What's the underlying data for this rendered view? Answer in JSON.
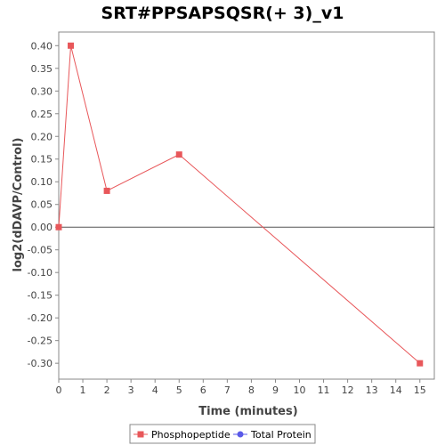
{
  "chart_data": {
    "type": "line",
    "title": "SRT#PPSAPSQSR(+ 3)_v1",
    "xlabel": "Time (minutes)",
    "ylabel": "log2(dDAVP/Control)",
    "xlim": [
      0,
      15.6
    ],
    "ylim": [
      -0.335,
      0.43
    ],
    "xticks": [
      0,
      1,
      2,
      3,
      4,
      5,
      6,
      7,
      8,
      9,
      10,
      11,
      12,
      13,
      14,
      15
    ],
    "xtick_labels": [
      "0",
      "1",
      "2",
      "3",
      "4",
      "5",
      "6",
      "7",
      "8",
      "9",
      "10",
      "11",
      "12",
      "13",
      "14",
      "15"
    ],
    "yticks": [
      0.4,
      0.35,
      0.3,
      0.25,
      0.2,
      0.15,
      0.1,
      0.05,
      0.0,
      -0.05,
      -0.1,
      -0.15,
      -0.2,
      -0.25,
      -0.3
    ],
    "ytick_labels": [
      "0.40",
      "0.35",
      "0.30",
      "0.25",
      "0.20",
      "0.15",
      "0.10",
      "0.05",
      "0.00",
      "-0.05",
      "-0.10",
      "-0.15",
      "-0.20",
      "-0.25",
      "-0.30"
    ],
    "zero_line": true,
    "grid": false,
    "legend_position": "bottom",
    "series": [
      {
        "name": "Phosphopeptide",
        "color": "#e8575a",
        "marker": "square",
        "x": [
          0,
          0.5,
          2,
          5,
          15
        ],
        "y": [
          0.0,
          0.4,
          0.08,
          0.16,
          -0.3
        ]
      }
    ],
    "legend": [
      {
        "name": "Phosphopeptide",
        "color": "#e8575a",
        "marker": "square"
      },
      {
        "name": "Total Protein",
        "color": "#5a5ae8",
        "marker": "circle"
      }
    ]
  }
}
